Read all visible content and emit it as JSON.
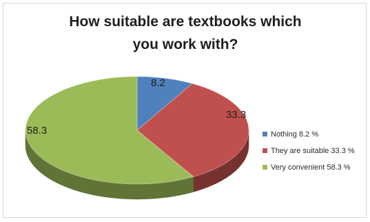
{
  "title_lines": [
    "How suitable are textbooks which",
    "you work with?"
  ],
  "legend": [
    {
      "label": "Nothing 8.2 %",
      "color": "#4f81bd"
    },
    {
      "label": "They are suitable 33.3 %",
      "color": "#c0504d"
    },
    {
      "label": "Very convenient 58.3 %",
      "color": "#9bbb59"
    }
  ],
  "chart_data": {
    "type": "pie",
    "title": "How suitable are textbooks which you work with?",
    "categories": [
      "Nothing",
      "They are suitable",
      "Very convenient"
    ],
    "values": [
      8.2,
      33.3,
      58.3
    ],
    "data_labels": [
      "8.2",
      "33.3",
      "58.3"
    ],
    "colors": [
      "#4f81bd",
      "#c0504d",
      "#9bbb59"
    ],
    "style": "3d",
    "legend_position": "right"
  }
}
